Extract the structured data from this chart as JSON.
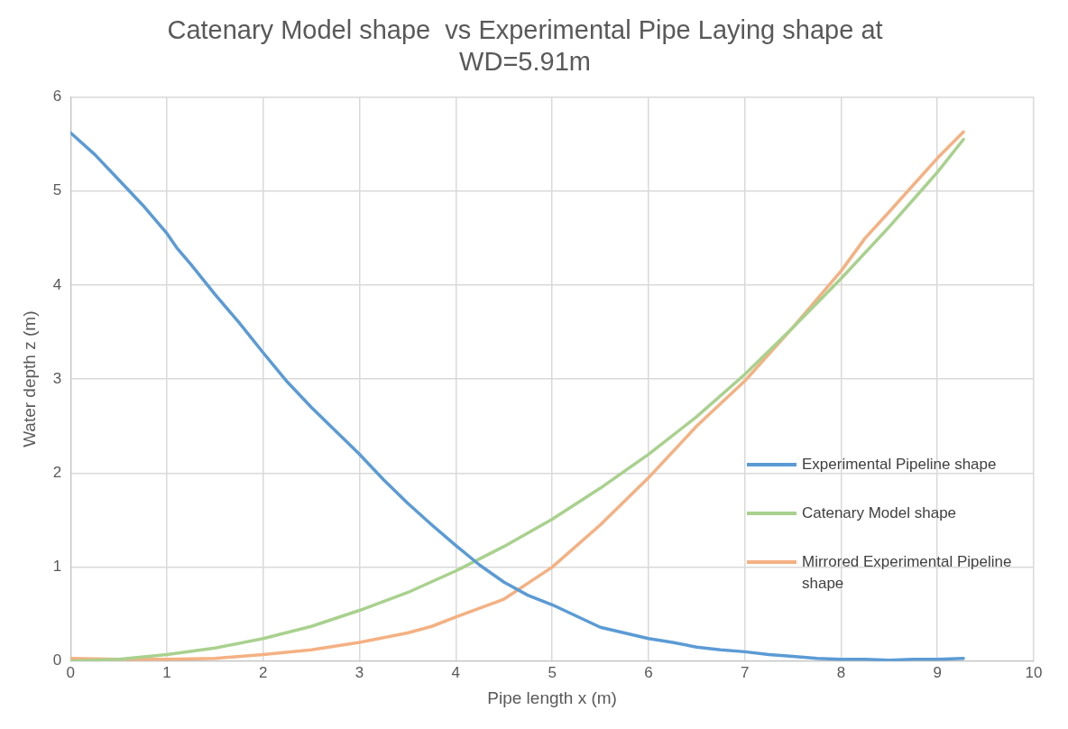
{
  "chart_data": {
    "type": "line",
    "title": "Catenary Model shape  vs Experimental Pipe Laying shape at WD=5.91m",
    "xlabel": "Pipe length x (m)",
    "ylabel": "Water depth z (m)",
    "xlim": [
      0,
      10
    ],
    "xticks": [
      0,
      1,
      2,
      3,
      4,
      5,
      6,
      7,
      8,
      9,
      10
    ],
    "ylim": [
      0,
      6
    ],
    "yticks": [
      0,
      1,
      2,
      3,
      4,
      5,
      6
    ],
    "grid": true,
    "legend": "right",
    "marker": "none",
    "series": [
      {
        "name": "Experimental Pipeline shape",
        "color": "#5b9bd5",
        "x": [
          0,
          0.25,
          0.5,
          0.75,
          1,
          1.1,
          1.25,
          1.5,
          1.75,
          2,
          2.25,
          2.5,
          2.75,
          3,
          3.25,
          3.5,
          3.75,
          4,
          4.25,
          4.5,
          4.75,
          5,
          5.25,
          5.5,
          5.75,
          6,
          6.25,
          6.5,
          6.75,
          7,
          7.25,
          7.5,
          7.75,
          8,
          8.25,
          8.5,
          8.75,
          9,
          9.27
        ],
        "values": [
          5.62,
          5.39,
          5.12,
          4.85,
          4.55,
          4.4,
          4.22,
          3.9,
          3.6,
          3.28,
          2.97,
          2.7,
          2.45,
          2.2,
          1.93,
          1.68,
          1.45,
          1.23,
          1.02,
          0.84,
          0.7,
          0.6,
          0.48,
          0.36,
          0.3,
          0.24,
          0.2,
          0.15,
          0.12,
          0.1,
          0.07,
          0.05,
          0.03,
          0.02,
          0.02,
          0.01,
          0.02,
          0.02,
          0.03
        ]
      },
      {
        "name": "Catenary Model shape",
        "color": "#a9d18e",
        "x": [
          0,
          0.5,
          1,
          1.5,
          2,
          2.5,
          3,
          3.5,
          4,
          4.5,
          5,
          5.5,
          6,
          6.5,
          7,
          7.5,
          8,
          8.5,
          9,
          9.27
        ],
        "values": [
          0,
          0.02,
          0.07,
          0.14,
          0.24,
          0.37,
          0.54,
          0.73,
          0.96,
          1.22,
          1.51,
          1.84,
          2.2,
          2.6,
          3.05,
          3.55,
          4.07,
          4.62,
          5.2,
          5.55
        ]
      },
      {
        "name": "Mirrored Experimental Pipeline shape",
        "color": "#f4b183",
        "x": [
          0,
          0.5,
          1,
          1.5,
          2,
          2.5,
          3,
          3.5,
          3.75,
          4,
          4.5,
          5,
          5.5,
          6,
          6.5,
          7,
          7.5,
          8,
          8.25,
          8.5,
          9,
          9.27
        ],
        "values": [
          0.03,
          0.02,
          0.02,
          0.03,
          0.07,
          0.12,
          0.2,
          0.3,
          0.37,
          0.47,
          0.66,
          1.0,
          1.45,
          1.95,
          2.5,
          2.98,
          3.55,
          4.15,
          4.5,
          4.78,
          5.35,
          5.63
        ]
      }
    ]
  }
}
